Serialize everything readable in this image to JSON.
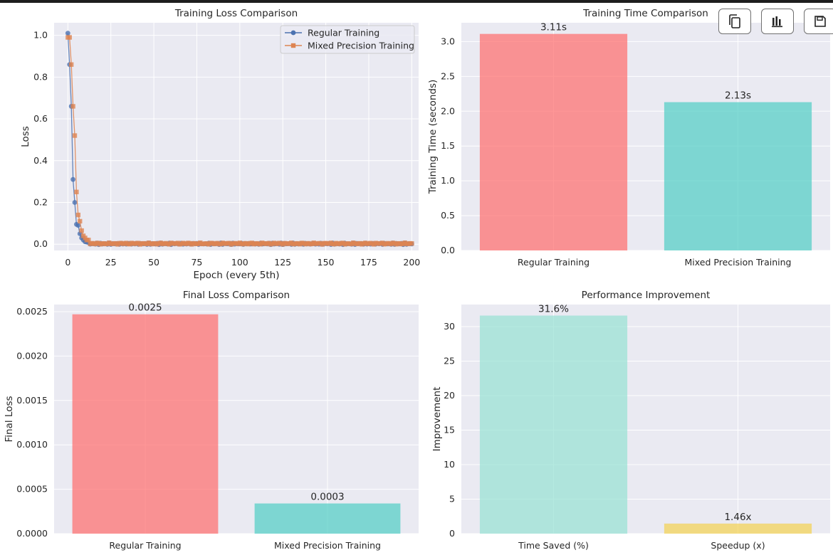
{
  "toolbar": {
    "buttons": [
      {
        "name": "copy-button",
        "icon": "copy-icon"
      },
      {
        "name": "chart-button",
        "icon": "bar-chart-icon"
      },
      {
        "name": "save-button",
        "icon": "save-icon"
      }
    ]
  },
  "chart_data": [
    {
      "type": "line",
      "title": "Training Loss Comparison",
      "xlabel": "Epoch (every 5th)",
      "ylabel": "Loss",
      "xlim": [
        -8,
        204
      ],
      "ylim": [
        -0.03,
        1.06
      ],
      "xticks": [
        0,
        25,
        50,
        75,
        100,
        125,
        150,
        175,
        200
      ],
      "yticks": [
        0.0,
        0.2,
        0.4,
        0.6,
        0.8,
        1.0
      ],
      "ytick_decimals": 1,
      "grid": true,
      "legend": "top-right",
      "tail_from": 13,
      "tail_to": 200,
      "series": [
        {
          "name": "Regular Training",
          "color": "#4c72b0",
          "marker": "circle",
          "head_x": [
            0,
            1,
            2,
            3,
            4,
            5,
            6,
            7,
            8,
            9,
            10,
            11,
            12
          ],
          "head_y": [
            1.01,
            0.86,
            0.66,
            0.31,
            0.2,
            0.095,
            0.09,
            0.05,
            0.03,
            0.02,
            0.012,
            0.01,
            0.008
          ],
          "tail_y": 0.002
        },
        {
          "name": "Mixed Precision Training",
          "color": "#dd8452",
          "marker": "square",
          "head_x": [
            0,
            1,
            2,
            3,
            4,
            5,
            6,
            7,
            8,
            9,
            10,
            11,
            12
          ],
          "head_y": [
            0.99,
            0.99,
            0.86,
            0.66,
            0.52,
            0.25,
            0.14,
            0.11,
            0.065,
            0.04,
            0.03,
            0.02,
            0.02
          ],
          "tail_y": 0.003
        }
      ]
    },
    {
      "type": "bar",
      "title": "Training Time Comparison",
      "xlabel": "",
      "ylabel": "Training Time (seconds)",
      "categories": [
        "Regular Training",
        "Mixed Precision Training"
      ],
      "values": [
        3.11,
        2.13
      ],
      "value_labels": [
        "3.11s",
        "2.13s"
      ],
      "colors": [
        "#ff6b6b",
        "#4ecdc4"
      ],
      "ylim": [
        0,
        3.27
      ],
      "yticks": [
        0.0,
        0.5,
        1.0,
        1.5,
        2.0,
        2.5,
        3.0
      ],
      "ytick_decimals": 1,
      "grid": true
    },
    {
      "type": "bar",
      "title": "Final Loss Comparison",
      "xlabel": "",
      "ylabel": "Final Loss",
      "categories": [
        "Regular Training",
        "Mixed Precision Training"
      ],
      "values": [
        0.00247,
        0.00034
      ],
      "value_labels": [
        "0.0025",
        "0.0003"
      ],
      "colors": [
        "#ff6b6b",
        "#4ecdc4"
      ],
      "ylim": [
        0,
        0.00258
      ],
      "yticks": [
        0.0,
        0.0005,
        0.001,
        0.0015,
        0.002,
        0.0025
      ],
      "ytick_decimals": 4,
      "grid": true
    },
    {
      "type": "bar",
      "title": "Performance Improvement",
      "xlabel": "",
      "ylabel": "Improvement",
      "categories": [
        "Time Saved (%)",
        "Speedup (x)"
      ],
      "values": [
        31.6,
        1.46
      ],
      "value_labels": [
        "31.6%",
        "1.46x"
      ],
      "colors": [
        "#95e1d3",
        "#f3d250"
      ],
      "ylim": [
        0,
        33.2
      ],
      "yticks": [
        0,
        5,
        10,
        15,
        20,
        25,
        30
      ],
      "ytick_decimals": 0,
      "grid": true
    }
  ]
}
